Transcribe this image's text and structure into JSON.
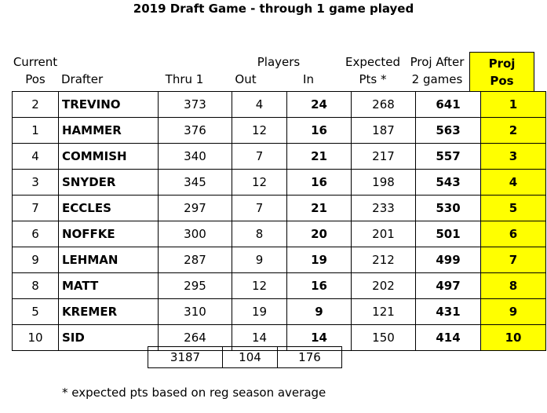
{
  "title": "2019 Draft Game - through 1 game played",
  "headers": {
    "current": "Current",
    "pos": "Pos",
    "drafter": "Drafter",
    "thru1": "Thru 1",
    "players": "Players",
    "out": "Out",
    "in": "In",
    "expected": "Expected",
    "pts": "Pts *",
    "proj_after": "Proj After",
    "two_games": "2 games",
    "proj": "Proj",
    "proj_pos": "Pos"
  },
  "rows": [
    {
      "pos": "2",
      "drafter": "TREVINO",
      "thru1": "373",
      "out": "4",
      "in": "24",
      "exp": "268",
      "proj": "641",
      "rank": "1"
    },
    {
      "pos": "1",
      "drafter": "HAMMER",
      "thru1": "376",
      "out": "12",
      "in": "16",
      "exp": "187",
      "proj": "563",
      "rank": "2"
    },
    {
      "pos": "4",
      "drafter": "COMMISH",
      "thru1": "340",
      "out": "7",
      "in": "21",
      "exp": "217",
      "proj": "557",
      "rank": "3"
    },
    {
      "pos": "3",
      "drafter": "SNYDER",
      "thru1": "345",
      "out": "12",
      "in": "16",
      "exp": "198",
      "proj": "543",
      "rank": "4"
    },
    {
      "pos": "7",
      "drafter": "ECCLES",
      "thru1": "297",
      "out": "7",
      "in": "21",
      "exp": "233",
      "proj": "530",
      "rank": "5"
    },
    {
      "pos": "6",
      "drafter": "NOFFKE",
      "thru1": "300",
      "out": "8",
      "in": "20",
      "exp": "201",
      "proj": "501",
      "rank": "6"
    },
    {
      "pos": "9",
      "drafter": "LEHMAN",
      "thru1": "287",
      "out": "9",
      "in": "19",
      "exp": "212",
      "proj": "499",
      "rank": "7"
    },
    {
      "pos": "8",
      "drafter": "MATT",
      "thru1": "295",
      "out": "12",
      "in": "16",
      "exp": "202",
      "proj": "497",
      "rank": "8"
    },
    {
      "pos": "5",
      "drafter": "KREMER",
      "thru1": "310",
      "out": "19",
      "in": "9",
      "exp": "121",
      "proj": "431",
      "rank": "9"
    },
    {
      "pos": "10",
      "drafter": "SID",
      "thru1": "264",
      "out": "14",
      "in": "14",
      "exp": "150",
      "proj": "414",
      "rank": "10"
    }
  ],
  "totals": {
    "thru1": "3187",
    "out": "104",
    "in": "176"
  },
  "footnote": "* expected pts based on reg season average",
  "colors": {
    "highlight": "#ffff00"
  }
}
